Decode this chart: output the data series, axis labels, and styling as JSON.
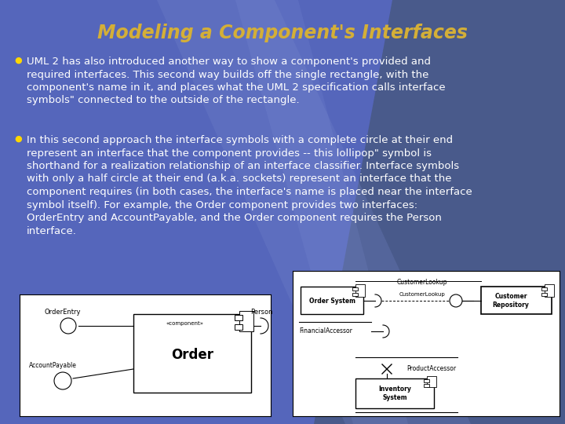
{
  "title": "Modeling a Component's Interfaces",
  "title_color": "#D4AF37",
  "title_fontsize": 17,
  "bg_color": "#5566BB",
  "bullet_color": "#FFD700",
  "text_color": "#FFFFFF",
  "text_fontsize": 9.5,
  "bullet1": "UML 2 has also introduced another way to show a component's provided and\nrequired interfaces. This second way builds off the single rectangle, with the\ncomponent's name in it, and places what the UML 2 specification calls interface\nsymbols\" connected to the outside of the rectangle.",
  "bullet2_pre_italic1": "In this second approach the interface symbols with a complete circle at their end\nrepresent an interface that the component provides -- this lollipop\" symbol is\nshorthand for a realization relationship of an interface classifier. Interface symbols\nwith only a half circle at their end (a.k.a. sockets) represent an interface that the\ncomponent requires (in both cases, the interface's name is placed near the interface\nsymbol itself). For example, the Order component ",
  "bullet2_italic1": "provides",
  "bullet2_mid": " two interfaces:\nOrderEntry and AccountPayable, and the Order component ",
  "bullet2_italic2": "requires",
  "bullet2_post": " the Person\ninterface."
}
